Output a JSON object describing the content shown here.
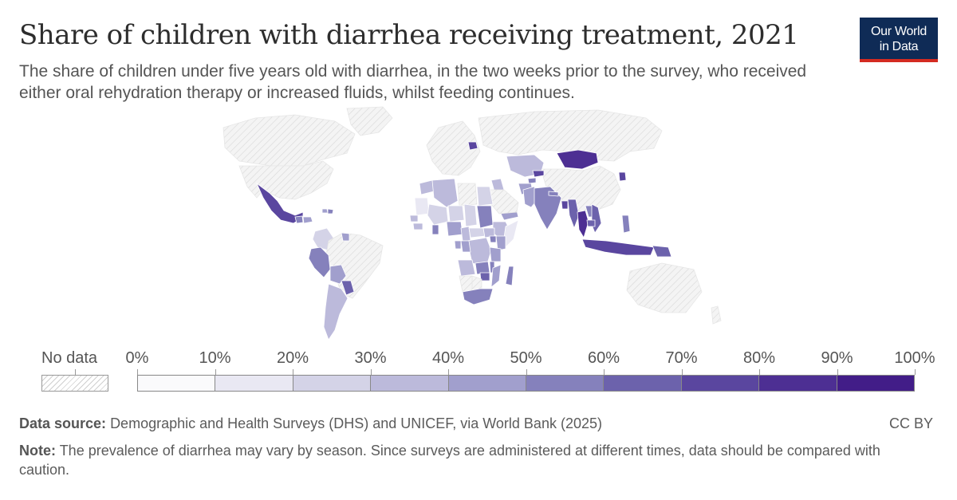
{
  "header": {
    "title": "Share of children with diarrhea receiving treatment, 2021",
    "subtitle": "The share of children under five years old with diarrhea, in the two weeks prior to the survey, who received either oral rehydration therapy or increased fluids, whilst feeding continues."
  },
  "logo": {
    "line1": "Our World",
    "line2": "in Data"
  },
  "legend": {
    "no_data_label": "No data",
    "tick_labels": [
      "0%",
      "10%",
      "20%",
      "30%",
      "40%",
      "50%",
      "60%",
      "70%",
      "80%",
      "90%",
      "100%"
    ],
    "bin_colors": [
      "#fafafc",
      "#e9e8f3",
      "#d4d3e7",
      "#bcbadb",
      "#a19fcd",
      "#8581bc",
      "#6c62ac",
      "#5a469f",
      "#4d2f93",
      "#421d88"
    ]
  },
  "footer": {
    "source_label": "Data source:",
    "source_text": "Demographic and Health Surveys (DHS) and UNICEF, via World Bank (2025)",
    "license": "CC BY",
    "note_label": "Note:",
    "note_text": "The prevalence of diarrhea may vary by season. Since surveys are administered at different times, data should be compared with caution."
  },
  "map": {
    "colors": {
      "no_data_fill": "#f4f4f4",
      "no_data_stripe": "#d8d8d8",
      "border": "#ffffff"
    },
    "regions": [
      {
        "name": "Canada",
        "value": null
      },
      {
        "name": "United States",
        "value": null
      },
      {
        "name": "Greenland",
        "value": null
      },
      {
        "name": "Mexico",
        "value": 0.76
      },
      {
        "name": "Guatemala",
        "value": 0.55
      },
      {
        "name": "Honduras",
        "value": 0.45
      },
      {
        "name": "Haiti",
        "value": 0.42
      },
      {
        "name": "Dominican Republic",
        "value": 0.5
      },
      {
        "name": "Colombia",
        "value": 0.25
      },
      {
        "name": "Brazil",
        "value": null
      },
      {
        "name": "Peru",
        "value": 0.52
      },
      {
        "name": "Bolivia",
        "value": 0.4
      },
      {
        "name": "Paraguay",
        "value": 0.65
      },
      {
        "name": "Argentina",
        "value": 0.32
      },
      {
        "name": "Guyana",
        "value": 0.45
      },
      {
        "name": "Europe",
        "value": null
      },
      {
        "name": "Belarus",
        "value": 0.72
      },
      {
        "name": "Russia",
        "value": null
      },
      {
        "name": "Mongolia",
        "value": 0.8
      },
      {
        "name": "China",
        "value": null
      },
      {
        "name": "Kazakhstan",
        "value": 0.3
      },
      {
        "name": "Kyrgyzstan",
        "value": 0.7
      },
      {
        "name": "Tajikistan",
        "value": 0.55
      },
      {
        "name": "Afghanistan",
        "value": 0.45
      },
      {
        "name": "Pakistan",
        "value": 0.42
      },
      {
        "name": "India",
        "value": 0.52
      },
      {
        "name": "Nepal",
        "value": 0.55
      },
      {
        "name": "Bangladesh",
        "value": 0.72
      },
      {
        "name": "Myanmar",
        "value": 0.62
      },
      {
        "name": "Thailand",
        "value": 0.8
      },
      {
        "name": "Laos",
        "value": 0.55
      },
      {
        "name": "Vietnam",
        "value": 0.6
      },
      {
        "name": "Cambodia",
        "value": 0.65
      },
      {
        "name": "Philippines",
        "value": 0.52
      },
      {
        "name": "Indonesia",
        "value": 0.7
      },
      {
        "name": "Papua New Guinea",
        "value": 0.62
      },
      {
        "name": "North Korea",
        "value": 0.78
      },
      {
        "name": "Iraq",
        "value": 0.3
      },
      {
        "name": "Yemen",
        "value": 0.45
      },
      {
        "name": "Saudi Arabia",
        "value": null
      },
      {
        "name": "Morocco",
        "value": 0.3
      },
      {
        "name": "Algeria",
        "value": 0.3
      },
      {
        "name": "Libya",
        "value": null
      },
      {
        "name": "Egypt",
        "value": 0.2
      },
      {
        "name": "Mauritania",
        "value": 0.15
      },
      {
        "name": "Mali",
        "value": 0.25
      },
      {
        "name": "Niger",
        "value": 0.2
      },
      {
        "name": "Chad",
        "value": 0.25
      },
      {
        "name": "Sudan",
        "value": 0.55
      },
      {
        "name": "Ethiopia",
        "value": 0.3
      },
      {
        "name": "Somalia",
        "value": 0.15
      },
      {
        "name": "Senegal",
        "value": 0.35
      },
      {
        "name": "Guinea",
        "value": 0.3
      },
      {
        "name": "Ghana",
        "value": 0.5
      },
      {
        "name": "Nigeria",
        "value": 0.45
      },
      {
        "name": "Cameroon",
        "value": 0.3
      },
      {
        "name": "Central African Republic",
        "value": 0.2
      },
      {
        "name": "South Sudan",
        "value": 0.35
      },
      {
        "name": "DR Congo",
        "value": 0.35
      },
      {
        "name": "Congo",
        "value": 0.4
      },
      {
        "name": "Gabon",
        "value": 0.4
      },
      {
        "name": "Uganda",
        "value": 0.5
      },
      {
        "name": "Kenya",
        "value": 0.45
      },
      {
        "name": "Tanzania",
        "value": 0.45
      },
      {
        "name": "Angola",
        "value": 0.35
      },
      {
        "name": "Zambia",
        "value": 0.5
      },
      {
        "name": "Malawi",
        "value": 0.55
      },
      {
        "name": "Mozambique",
        "value": 0.45
      },
      {
        "name": "Zimbabwe",
        "value": 0.65
      },
      {
        "name": "Namibia",
        "value": null
      },
      {
        "name": "Botswana",
        "value": null
      },
      {
        "name": "South Africa",
        "value": 0.55
      },
      {
        "name": "Madagascar",
        "value": 0.5
      },
      {
        "name": "Australia",
        "value": null
      },
      {
        "name": "New Zealand",
        "value": null
      }
    ]
  }
}
